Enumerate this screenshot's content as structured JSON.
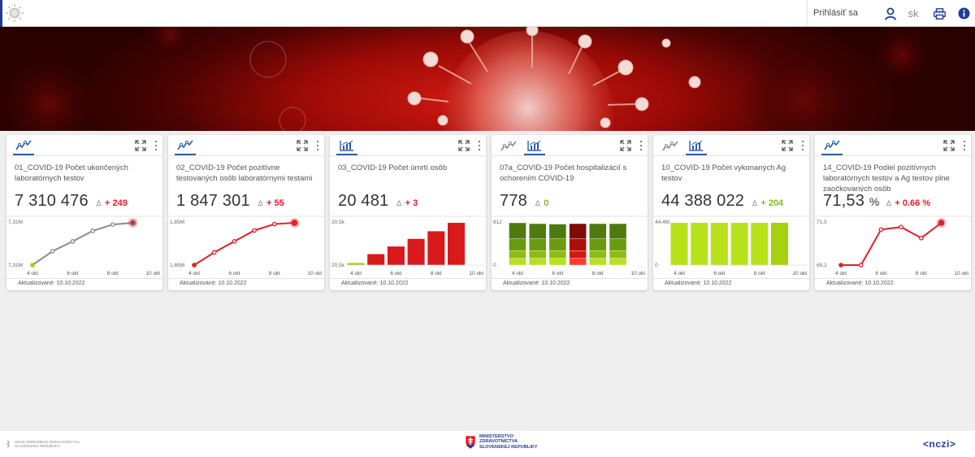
{
  "header": {
    "login_label": "Prihlásiť sa",
    "language": "sk",
    "icons": [
      "sun-logo-icon",
      "user-icon",
      "print-icon",
      "info-icon"
    ],
    "accent_color": "#1f3c99"
  },
  "cards": [
    {
      "title": "01_COVID-19 Počet ukončených laboratórnych testov",
      "value": "7 310 476",
      "unit": "",
      "delta_symbol": "Δ",
      "delta": "+ 249",
      "delta_color": "#e0202a",
      "updated": "Aktualizované: 10.10.2022",
      "tabs": [
        "trend-icon"
      ],
      "chart_data": {
        "type": "line",
        "y_top_label": "7,31M",
        "y_bottom_label": "7,31M",
        "x_ticks": [
          "4 okt",
          "6 okt",
          "8 okt",
          "10 okt"
        ],
        "x": [
          4,
          5,
          6,
          7,
          8,
          9
        ],
        "values": [
          0.0,
          0.33,
          0.56,
          0.81,
          0.96,
          1.0
        ],
        "line_color": "#8a8a8a",
        "first_point_color": "#9ad21a",
        "last_point_color": "#e0202a"
      }
    },
    {
      "title": "02_COVID-19 Počet pozitívne testovaných osôb laboratórnymi testami",
      "value": "1 847 301",
      "unit": "",
      "delta_symbol": "Δ",
      "delta": "+ 55",
      "delta_color": "#e0202a",
      "updated": "Aktualizované: 10.10.2022",
      "tabs": [
        "trend-icon"
      ],
      "chart_data": {
        "type": "line",
        "y_top_label": "1,85M",
        "y_bottom_label": "1,85M",
        "x_ticks": [
          "4 okt",
          "6 okt",
          "8 okt",
          "10 okt"
        ],
        "x": [
          4,
          5,
          6,
          7,
          8,
          9
        ],
        "values": [
          0.0,
          0.3,
          0.56,
          0.82,
          0.97,
          1.0
        ],
        "line_color": "#e0202a",
        "first_point_color": "#e0202a",
        "last_point_color": "#e0202a"
      }
    },
    {
      "title": "03_COVID-19 Počet úmrtí osôb",
      "value": "20 481",
      "unit": "",
      "delta_symbol": "Δ",
      "delta": "+ 3",
      "delta_color": "#e0202a",
      "updated": "Aktualizované: 10.10.2022",
      "tabs": [
        "bar-chart-icon"
      ],
      "chart_data": {
        "type": "bar",
        "y_top_label": "20,5k",
        "y_bottom_label": "20,5k",
        "x_ticks": [
          "4 okt",
          "6 okt",
          "8 okt",
          "10 okt"
        ],
        "x": [
          4,
          5,
          6,
          7,
          8,
          9
        ],
        "values": [
          0.05,
          0.26,
          0.44,
          0.62,
          0.8,
          1.0
        ],
        "bar_colors": [
          "#9ad21a",
          "#d91a1a",
          "#d91a1a",
          "#d91a1a",
          "#d91a1a",
          "#d91a1a"
        ]
      }
    },
    {
      "title": "07a_COVID-19 Počet hospitalizácií s ochorením COVID-19",
      "value": "778",
      "unit": "",
      "delta_symbol": "Δ",
      "delta": "0",
      "delta_color": "#7fbf1a",
      "updated": "Aktualizované: 10.10.2022",
      "tabs": [
        "trend-icon",
        "bar-chart-icon"
      ],
      "chart_data": {
        "type": "bar",
        "stacked": true,
        "y_top_label": "812",
        "y_bottom_label": "0",
        "x_ticks": [
          "4 okt",
          "6 okt",
          "8 okt",
          "10 okt"
        ],
        "x": [
          4,
          5,
          6,
          7,
          8,
          9
        ],
        "segment_colors": [
          "#b7e21a",
          "#8dbd12",
          "#6a9a10",
          "#4f7a10"
        ],
        "alt_segment_colors": [
          "#ff3b30",
          "#d01a14",
          "#a8100c",
          "#800a08"
        ],
        "alt_index": 3,
        "stacks": [
          [
            0.16,
            0.18,
            0.28,
            0.38
          ],
          [
            0.16,
            0.18,
            0.28,
            0.36
          ],
          [
            0.16,
            0.18,
            0.28,
            0.35
          ],
          [
            0.16,
            0.18,
            0.28,
            0.36
          ],
          [
            0.16,
            0.18,
            0.28,
            0.36
          ],
          [
            0.16,
            0.18,
            0.28,
            0.36
          ]
        ]
      }
    },
    {
      "title": "10_COVID-19 Počet vykonaných Ag testov",
      "value": "44 388 022",
      "unit": "",
      "delta_symbol": "Δ",
      "delta": "+ 204",
      "delta_color": "#7fbf1a",
      "updated": "Aktualizované: 10.10.2022",
      "tabs": [
        "trend-icon",
        "bar-chart-icon"
      ],
      "chart_data": {
        "type": "bar",
        "y_top_label": "44,4M",
        "y_bottom_label": "0",
        "x_ticks": [
          "4 okt",
          "6 okt",
          "8 okt",
          "10 okt"
        ],
        "x": [
          4,
          5,
          6,
          7,
          8,
          9
        ],
        "values": [
          1.0,
          1.0,
          1.0,
          1.0,
          1.0,
          1.0
        ],
        "bar_colors": [
          "#b7e21a",
          "#b7e21a",
          "#b7e21a",
          "#b7e21a",
          "#b7e21a",
          "#a6d10f"
        ]
      }
    },
    {
      "title": "14_COVID-19 Podiel pozitívnych laboratórnych testov a Ag testov plne zaočkovaných osôb",
      "value": "71,53",
      "unit": "%",
      "delta_symbol": "Δ",
      "delta": "+ 0.66 %",
      "delta_color": "#e0202a",
      "updated": "Aktualizované: 10.10.2022",
      "tabs": [
        "trend-icon"
      ],
      "chart_data": {
        "type": "line",
        "y_top_label": "71,5",
        "y_bottom_label": "69,2",
        "x_ticks": [
          "4 okt",
          "6 okt",
          "8 okt",
          "10 okt"
        ],
        "x": [
          4,
          5,
          6,
          7,
          8,
          9
        ],
        "values": [
          0.0,
          0.0,
          0.84,
          0.9,
          0.64,
          1.0
        ],
        "line_color": "#e0202a",
        "first_point_color": "#e0202a",
        "last_point_color": "#e0202a"
      }
    }
  ],
  "footer": {
    "uvz_text": "ÚRAD VEREJNÉHO ZDRAVOTNÍCTVA SLOVENSKEJ REPUBLIKY",
    "ministry_line1": "MINISTERSTVO",
    "ministry_line2": "ZDRAVOTNÍCTVA",
    "ministry_line3": "SLOVENSKEJ REPUBLIKY",
    "nczi": "<nczi>"
  }
}
